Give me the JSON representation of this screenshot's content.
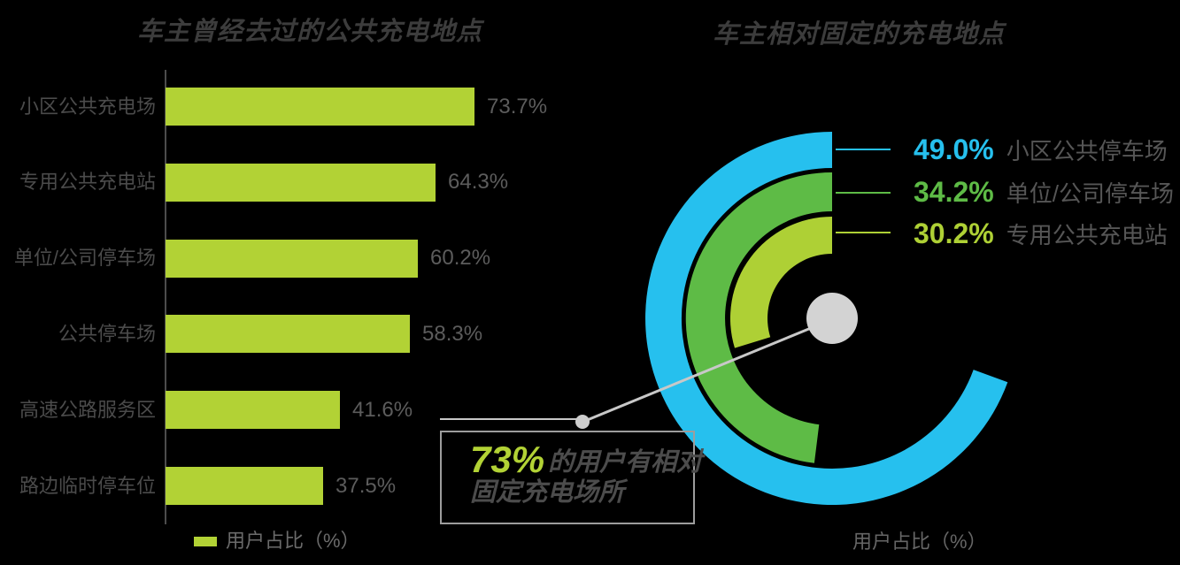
{
  "palette": {
    "light_green": "#b2d235",
    "ring_light_green": "#aed035",
    "green": "#5ebb46",
    "blue": "#26c0ee",
    "gray_line": "#c8c8c8",
    "dot_gray": "#cdcdcd",
    "center_circle_gray": "#d3d3d3",
    "dark_text": "#3c3c3c"
  },
  "chart_data": [
    {
      "type": "bar",
      "orientation": "horizontal",
      "title": "车主曾经去过的公共充电地点",
      "categories": [
        "小区公共充电场",
        "专用公共充电站",
        "单位/公司停车场",
        "公共停车场",
        "高速公路服务区",
        "路边临时停车位"
      ],
      "values": [
        73.7,
        64.3,
        60.2,
        58.3,
        41.6,
        37.5
      ],
      "value_labels": [
        "73.7%",
        "64.3%",
        "60.2%",
        "58.3%",
        "41.6%",
        "37.5%"
      ],
      "unit": "%",
      "xlim": [
        0,
        100
      ],
      "grid": false,
      "bar_color": "#b2d235",
      "legend_label": "用户占比（%）",
      "legend_position": "bottom"
    },
    {
      "type": "radial-bar",
      "title": "车主相对固定的充电地点",
      "categories": [
        "小区公共停车场",
        "单位/公司停车场",
        "专用公共充电站"
      ],
      "values": [
        49.0,
        34.2,
        30.2
      ],
      "labels": [
        "49.0%",
        "34.2%",
        "30.2%"
      ],
      "colors": [
        "#26c0ee",
        "#5ebb46",
        "#aed035"
      ],
      "sweep_deg": [
        250,
        173,
        107
      ],
      "ring_radii": [
        [
          170,
          211
        ],
        [
          121,
          165
        ],
        [
          73,
          115
        ]
      ],
      "start_angle": "12-oclock, counterclockwise",
      "legend_position": "right",
      "annotation": {
        "highlight": "73%",
        "line1": "的用户有相对",
        "line2": "固定充电场所"
      },
      "footer": "用户占比（%）"
    }
  ]
}
